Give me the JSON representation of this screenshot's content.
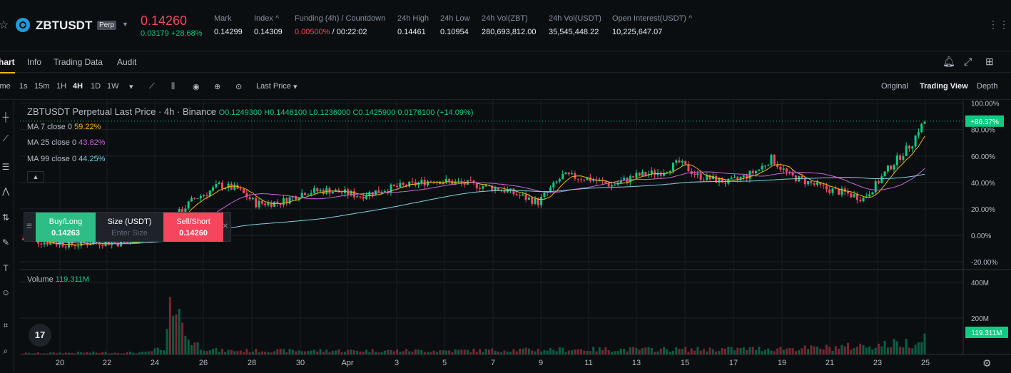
{
  "header": {
    "symbol": "ZBTUSDT",
    "badge": "Perp",
    "last_price": "0.14260",
    "change": "0.03179 +28.68%",
    "stats": [
      {
        "label": "Mark",
        "value": "0.14299"
      },
      {
        "label": "Index ^",
        "value": "0.14309"
      },
      {
        "label": "Funding (4h) / Countdown",
        "value_red": "0.00500%",
        "value_rest": " / 00:22:02"
      },
      {
        "label": "24h High",
        "value": "0.14461"
      },
      {
        "label": "24h Low",
        "value": "0.10954"
      },
      {
        "label": "24h Vol(ZBT)",
        "value": "280,693,812.00"
      },
      {
        "label": "24h Vol(USDT)",
        "value": "35,545,448.22"
      },
      {
        "label": "Open Interest(USDT) ^",
        "value": "10,225,647.07"
      }
    ]
  },
  "tabs": [
    "hart",
    "Info",
    "Trading Data",
    "Audit"
  ],
  "toolbar": {
    "intervals": [
      "ime",
      "1s",
      "15m",
      "1H",
      "4H",
      "1D",
      "1W"
    ],
    "price_type": "Last Price",
    "views": [
      "Original",
      "Trading View",
      "Depth"
    ]
  },
  "legend": {
    "title": "ZBTUSDT Perpetual Last Price · 4h · Binance",
    "ohlc": "O0.1249300 H0.1446100 L0.1236000 C0.1425900 0.0176100 (+14.09%)",
    "ma": [
      {
        "label": "MA 7 close 0",
        "value": "59.22%",
        "color": "#f0b90b"
      },
      {
        "label": "MA 25 close 0",
        "value": "43.82%",
        "color": "#c964d8"
      },
      {
        "label": "MA 99 close 0",
        "value": "44.25%",
        "color": "#7fd3e0"
      }
    ]
  },
  "trade": {
    "buy_label": "Buy/Long",
    "buy_price": "0.14263",
    "size_label": "Size (USDT)",
    "size_placeholder": "Enter Size",
    "sell_label": "Sell/Short",
    "sell_price": "0.14260"
  },
  "volume": {
    "label": "Volume",
    "value": "119.311M"
  },
  "axis": {
    "price_ticks": [
      "100.00%",
      "80.00%",
      "60.00%",
      "40.00%",
      "20.00%",
      "0.00%",
      "-20.00%"
    ],
    "current_tag": "+86.37%",
    "volume_ticks": [
      "400M",
      "200M"
    ],
    "volume_tag": "119.311M",
    "dates": [
      "20",
      "22",
      "24",
      "26",
      "28",
      "30",
      "Apr",
      "3",
      "5",
      "7",
      "9",
      "11",
      "13",
      "15",
      "17",
      "19",
      "21",
      "23",
      "25"
    ]
  },
  "colors": {
    "up": "#0ecb81",
    "down": "#f6465d",
    "ma7": "#f0b90b",
    "ma25": "#c964d8",
    "ma99": "#7fd3e0"
  },
  "chart_data": {
    "type": "candlestick",
    "unit": "%",
    "percent_path": [
      [
        0,
        -3
      ],
      [
        8,
        -5
      ],
      [
        16,
        -7
      ],
      [
        24,
        -5
      ],
      [
        34,
        -6
      ],
      [
        38,
        -2
      ],
      [
        42,
        0
      ],
      [
        50,
        15
      ],
      [
        56,
        28
      ],
      [
        60,
        32
      ],
      [
        64,
        38
      ],
      [
        70,
        35
      ],
      [
        76,
        24
      ],
      [
        84,
        25
      ],
      [
        92,
        33
      ],
      [
        100,
        34
      ],
      [
        110,
        30
      ],
      [
        118,
        35
      ],
      [
        126,
        38
      ],
      [
        134,
        42
      ],
      [
        140,
        40
      ],
      [
        148,
        38
      ],
      [
        156,
        35
      ],
      [
        162,
        30
      ],
      [
        168,
        25
      ],
      [
        172,
        35
      ],
      [
        176,
        45
      ],
      [
        184,
        43
      ],
      [
        192,
        38
      ],
      [
        200,
        45
      ],
      [
        208,
        48
      ],
      [
        214,
        55
      ],
      [
        220,
        45
      ],
      [
        226,
        42
      ],
      [
        230,
        40
      ],
      [
        236,
        45
      ],
      [
        240,
        50
      ],
      [
        244,
        58
      ],
      [
        250,
        45
      ],
      [
        256,
        40
      ],
      [
        262,
        35
      ],
      [
        268,
        32
      ],
      [
        274,
        28
      ],
      [
        278,
        38
      ],
      [
        282,
        50
      ],
      [
        286,
        60
      ],
      [
        290,
        70
      ],
      [
        292,
        80
      ],
      [
        294,
        86
      ]
    ],
    "volume_path": [
      [
        0,
        2
      ],
      [
        20,
        3
      ],
      [
        40,
        3
      ],
      [
        44,
        8
      ],
      [
        46,
        5
      ],
      [
        48,
        60
      ],
      [
        50,
        120
      ],
      [
        52,
        40
      ],
      [
        54,
        25
      ],
      [
        58,
        12
      ],
      [
        64,
        6
      ],
      [
        100,
        6
      ],
      [
        140,
        6
      ],
      [
        180,
        8
      ],
      [
        220,
        8
      ],
      [
        260,
        10
      ],
      [
        280,
        15
      ],
      [
        292,
        20
      ],
      [
        295,
        32
      ]
    ]
  }
}
